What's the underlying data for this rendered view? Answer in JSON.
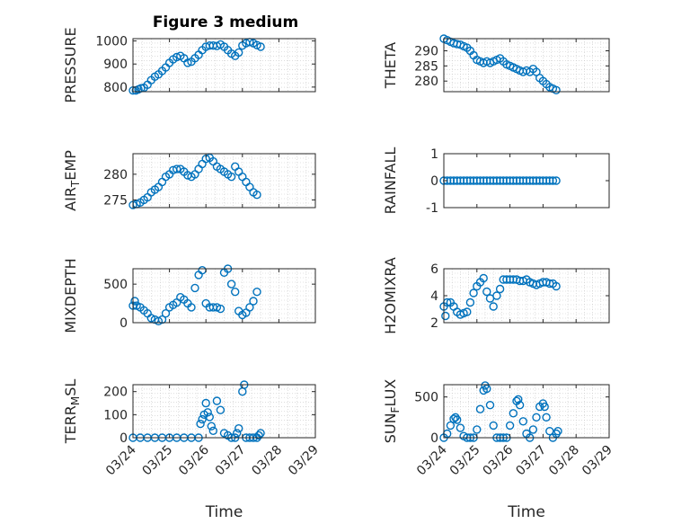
{
  "figure": {
    "title": "Figure 3 medium",
    "marker_color": "#0072bd",
    "axis_color": "#262626",
    "grid_color": "#c8c8c8"
  },
  "chart_data": [
    {
      "type": "scatter",
      "ylabel": "PRESSURE",
      "ylim": [
        780,
        1010
      ],
      "yticks": [
        800,
        900,
        1000
      ],
      "xlim": [
        0,
        5
      ],
      "xticks": [
        0,
        1,
        2,
        3,
        4,
        5
      ],
      "xticklabels": [],
      "grid": true,
      "points": [
        [
          0,
          785
        ],
        [
          0.08,
          785
        ],
        [
          0.15,
          790
        ],
        [
          0.22,
          795
        ],
        [
          0.3,
          797
        ],
        [
          0.4,
          810
        ],
        [
          0.5,
          830
        ],
        [
          0.6,
          845
        ],
        [
          0.7,
          855
        ],
        [
          0.8,
          870
        ],
        [
          0.9,
          885
        ],
        [
          1.0,
          905
        ],
        [
          1.1,
          920
        ],
        [
          1.2,
          930
        ],
        [
          1.3,
          935
        ],
        [
          1.4,
          925
        ],
        [
          1.5,
          905
        ],
        [
          1.6,
          910
        ],
        [
          1.7,
          925
        ],
        [
          1.8,
          940
        ],
        [
          1.9,
          960
        ],
        [
          2.0,
          975
        ],
        [
          2.1,
          980
        ],
        [
          2.2,
          980
        ],
        [
          2.3,
          978
        ],
        [
          2.4,
          985
        ],
        [
          2.5,
          975
        ],
        [
          2.6,
          960
        ],
        [
          2.7,
          945
        ],
        [
          2.8,
          935
        ],
        [
          2.9,
          950
        ],
        [
          3.0,
          980
        ],
        [
          3.1,
          990
        ],
        [
          3.2,
          995
        ],
        [
          3.3,
          990
        ],
        [
          3.4,
          982
        ],
        [
          3.5,
          975
        ]
      ]
    },
    {
      "type": "scatter",
      "ylabel": "THETA",
      "ylim": [
        276.5,
        294
      ],
      "yticks": [
        280,
        285,
        290
      ],
      "xlim": [
        0,
        5
      ],
      "xticks": [
        0,
        1,
        2,
        3,
        4,
        5
      ],
      "xticklabels": [],
      "grid": true,
      "points": [
        [
          0,
          294
        ],
        [
          0.1,
          293.5
        ],
        [
          0.2,
          293
        ],
        [
          0.3,
          292.5
        ],
        [
          0.4,
          292.2
        ],
        [
          0.5,
          292
        ],
        [
          0.6,
          291.5
        ],
        [
          0.7,
          291
        ],
        [
          0.8,
          290
        ],
        [
          0.9,
          288.5
        ],
        [
          1.0,
          287
        ],
        [
          1.1,
          286.5
        ],
        [
          1.2,
          286
        ],
        [
          1.3,
          286.5
        ],
        [
          1.4,
          286
        ],
        [
          1.5,
          286.5
        ],
        [
          1.6,
          287
        ],
        [
          1.7,
          287.5
        ],
        [
          1.8,
          286.5
        ],
        [
          1.9,
          285.5
        ],
        [
          2.0,
          285
        ],
        [
          2.1,
          284.5
        ],
        [
          2.2,
          284
        ],
        [
          2.3,
          283.5
        ],
        [
          2.4,
          283
        ],
        [
          2.5,
          283.5
        ],
        [
          2.6,
          283
        ],
        [
          2.7,
          284
        ],
        [
          2.8,
          283
        ],
        [
          2.9,
          281
        ],
        [
          3.0,
          280
        ],
        [
          3.1,
          279
        ],
        [
          3.2,
          278
        ],
        [
          3.3,
          277.5
        ],
        [
          3.4,
          277
        ]
      ]
    },
    {
      "type": "scatter",
      "ylabel": "AIR_TEMP",
      "ylabel_main": "AIR",
      "ylabel_sub": "T",
      "ylabel_rest": "EMP",
      "ylim": [
        273.5,
        284
      ],
      "yticks": [
        275,
        280
      ],
      "xlim": [
        0,
        5
      ],
      "xticks": [
        0,
        1,
        2,
        3,
        4,
        5
      ],
      "xticklabels": [],
      "grid": true,
      "points": [
        [
          0,
          274
        ],
        [
          0.1,
          274.2
        ],
        [
          0.2,
          274.5
        ],
        [
          0.3,
          275
        ],
        [
          0.4,
          275.5
        ],
        [
          0.5,
          276.5
        ],
        [
          0.6,
          277
        ],
        [
          0.7,
          277.5
        ],
        [
          0.8,
          278.5
        ],
        [
          0.9,
          279.5
        ],
        [
          1.0,
          280
        ],
        [
          1.1,
          280.8
        ],
        [
          1.2,
          281
        ],
        [
          1.3,
          281
        ],
        [
          1.4,
          280.5
        ],
        [
          1.5,
          279.8
        ],
        [
          1.6,
          279.5
        ],
        [
          1.7,
          280
        ],
        [
          1.8,
          281
        ],
        [
          1.9,
          282
        ],
        [
          2.0,
          283
        ],
        [
          2.1,
          283.2
        ],
        [
          2.2,
          282.5
        ],
        [
          2.3,
          281.5
        ],
        [
          2.4,
          281
        ],
        [
          2.5,
          280.5
        ],
        [
          2.6,
          280
        ],
        [
          2.7,
          279.5
        ],
        [
          2.8,
          281.5
        ],
        [
          2.9,
          280.5
        ],
        [
          3.0,
          279.5
        ],
        [
          3.1,
          278.5
        ],
        [
          3.2,
          277.5
        ],
        [
          3.3,
          276.5
        ],
        [
          3.4,
          276
        ]
      ]
    },
    {
      "type": "scatter",
      "ylabel": "RAINFALL",
      "ylim": [
        -1,
        1
      ],
      "yticks": [
        -1,
        0,
        1
      ],
      "xlim": [
        0,
        5
      ],
      "xticks": [
        0,
        1,
        2,
        3,
        4,
        5
      ],
      "xticklabels": [],
      "grid": false,
      "points": [
        [
          0,
          0
        ],
        [
          0.1,
          0
        ],
        [
          0.2,
          0
        ],
        [
          0.3,
          0
        ],
        [
          0.4,
          0
        ],
        [
          0.5,
          0
        ],
        [
          0.6,
          0
        ],
        [
          0.7,
          0
        ],
        [
          0.8,
          0
        ],
        [
          0.9,
          0
        ],
        [
          1.0,
          0
        ],
        [
          1.1,
          0
        ],
        [
          1.2,
          0
        ],
        [
          1.3,
          0
        ],
        [
          1.4,
          0
        ],
        [
          1.5,
          0
        ],
        [
          1.6,
          0
        ],
        [
          1.7,
          0
        ],
        [
          1.8,
          0
        ],
        [
          1.9,
          0
        ],
        [
          2.0,
          0
        ],
        [
          2.1,
          0
        ],
        [
          2.2,
          0
        ],
        [
          2.3,
          0
        ],
        [
          2.4,
          0
        ],
        [
          2.5,
          0
        ],
        [
          2.6,
          0
        ],
        [
          2.7,
          0
        ],
        [
          2.8,
          0
        ],
        [
          2.9,
          0
        ],
        [
          3.0,
          0
        ],
        [
          3.1,
          0
        ],
        [
          3.2,
          0
        ],
        [
          3.3,
          0
        ],
        [
          3.4,
          0
        ]
      ]
    },
    {
      "type": "scatter",
      "ylabel": "MIXDEPTH",
      "ylim": [
        0,
        700
      ],
      "yticks": [
        0,
        500
      ],
      "xlim": [
        0,
        5
      ],
      "xticks": [
        0,
        1,
        2,
        3,
        4,
        5
      ],
      "xticklabels": [],
      "grid": true,
      "points": [
        [
          0,
          220
        ],
        [
          0.05,
          280
        ],
        [
          0.1,
          220
        ],
        [
          0.2,
          200
        ],
        [
          0.3,
          160
        ],
        [
          0.4,
          120
        ],
        [
          0.5,
          60
        ],
        [
          0.6,
          40
        ],
        [
          0.7,
          20
        ],
        [
          0.8,
          40
        ],
        [
          0.9,
          120
        ],
        [
          1.0,
          200
        ],
        [
          1.1,
          230
        ],
        [
          1.2,
          260
        ],
        [
          1.3,
          330
        ],
        [
          1.4,
          300
        ],
        [
          1.5,
          250
        ],
        [
          1.6,
          200
        ],
        [
          1.7,
          450
        ],
        [
          1.8,
          620
        ],
        [
          1.9,
          680
        ],
        [
          2.0,
          250
        ],
        [
          2.1,
          200
        ],
        [
          2.2,
          200
        ],
        [
          2.3,
          200
        ],
        [
          2.4,
          180
        ],
        [
          2.5,
          650
        ],
        [
          2.6,
          700
        ],
        [
          2.7,
          500
        ],
        [
          2.8,
          400
        ],
        [
          2.9,
          150
        ],
        [
          3.0,
          100
        ],
        [
          3.1,
          130
        ],
        [
          3.2,
          200
        ],
        [
          3.3,
          280
        ],
        [
          3.4,
          400
        ]
      ]
    },
    {
      "type": "scatter",
      "ylabel": "H2OMIXRA",
      "ylim": [
        2,
        6
      ],
      "yticks": [
        2,
        4,
        6
      ],
      "xlim": [
        0,
        5
      ],
      "xticks": [
        0,
        1,
        2,
        3,
        4,
        5
      ],
      "xticklabels": [],
      "grid": true,
      "points": [
        [
          0,
          3.2
        ],
        [
          0.05,
          2.5
        ],
        [
          0.1,
          3.5
        ],
        [
          0.2,
          3.5
        ],
        [
          0.3,
          3.2
        ],
        [
          0.4,
          2.8
        ],
        [
          0.5,
          2.6
        ],
        [
          0.6,
          2.7
        ],
        [
          0.7,
          2.8
        ],
        [
          0.8,
          3.5
        ],
        [
          0.9,
          4.2
        ],
        [
          1.0,
          4.7
        ],
        [
          1.1,
          5.0
        ],
        [
          1.2,
          5.3
        ],
        [
          1.3,
          4.3
        ],
        [
          1.4,
          3.8
        ],
        [
          1.5,
          3.2
        ],
        [
          1.6,
          4.0
        ],
        [
          1.7,
          4.5
        ],
        [
          1.8,
          5.2
        ],
        [
          1.9,
          5.2
        ],
        [
          2.0,
          5.2
        ],
        [
          2.1,
          5.2
        ],
        [
          2.2,
          5.2
        ],
        [
          2.3,
          5.1
        ],
        [
          2.4,
          5.1
        ],
        [
          2.5,
          5.2
        ],
        [
          2.6,
          5.0
        ],
        [
          2.7,
          4.9
        ],
        [
          2.8,
          4.8
        ],
        [
          2.9,
          4.9
        ],
        [
          3.0,
          5.0
        ],
        [
          3.1,
          5.0
        ],
        [
          3.2,
          4.9
        ],
        [
          3.3,
          4.9
        ],
        [
          3.4,
          4.7
        ]
      ]
    },
    {
      "type": "scatter",
      "ylabel": "TERR_MSL",
      "ylabel_main": "TERR",
      "ylabel_sub": "M",
      "ylabel_rest": "SL",
      "ylim": [
        0,
        230
      ],
      "yticks": [
        0,
        100,
        200
      ],
      "xlim": [
        0,
        5
      ],
      "xticks": [
        0,
        1,
        2,
        3,
        4,
        5
      ],
      "xticklabels": [
        "03/24",
        "03/25",
        "03/26",
        "03/27",
        "03/28",
        "03/29"
      ],
      "xlabel": "Time",
      "grid": true,
      "points": [
        [
          0,
          0
        ],
        [
          0.2,
          0
        ],
        [
          0.4,
          0
        ],
        [
          0.6,
          0
        ],
        [
          0.8,
          0
        ],
        [
          1.0,
          0
        ],
        [
          1.2,
          0
        ],
        [
          1.4,
          0
        ],
        [
          1.6,
          0
        ],
        [
          1.8,
          0
        ],
        [
          1.85,
          60
        ],
        [
          1.9,
          80
        ],
        [
          1.95,
          100
        ],
        [
          2.0,
          150
        ],
        [
          2.05,
          110
        ],
        [
          2.1,
          90
        ],
        [
          2.15,
          50
        ],
        [
          2.2,
          30
        ],
        [
          2.3,
          160
        ],
        [
          2.4,
          120
        ],
        [
          2.5,
          20
        ],
        [
          2.6,
          10
        ],
        [
          2.7,
          0
        ],
        [
          2.8,
          0
        ],
        [
          2.85,
          20
        ],
        [
          2.9,
          40
        ],
        [
          3.0,
          200
        ],
        [
          3.05,
          230
        ],
        [
          3.1,
          0
        ],
        [
          3.2,
          0
        ],
        [
          3.3,
          0
        ],
        [
          3.4,
          0
        ],
        [
          3.45,
          10
        ],
        [
          3.5,
          20
        ]
      ]
    },
    {
      "type": "scatter",
      "ylabel": "SUN_FLUX",
      "ylabel_main": "SUN",
      "ylabel_sub": "F",
      "ylabel_rest": "LUX",
      "ylim": [
        0,
        650
      ],
      "yticks": [
        0,
        500
      ],
      "xlim": [
        0,
        5
      ],
      "xticks": [
        0,
        1,
        2,
        3,
        4,
        5
      ],
      "xticklabels": [
        "03/24",
        "03/25",
        "03/26",
        "03/27",
        "03/28",
        "03/29"
      ],
      "xlabel": "Time",
      "grid": true,
      "points": [
        [
          0,
          0
        ],
        [
          0.1,
          50
        ],
        [
          0.2,
          150
        ],
        [
          0.3,
          230
        ],
        [
          0.35,
          250
        ],
        [
          0.4,
          220
        ],
        [
          0.5,
          120
        ],
        [
          0.6,
          20
        ],
        [
          0.7,
          0
        ],
        [
          0.8,
          0
        ],
        [
          0.9,
          0
        ],
        [
          1.0,
          100
        ],
        [
          1.1,
          350
        ],
        [
          1.2,
          580
        ],
        [
          1.25,
          640
        ],
        [
          1.3,
          600
        ],
        [
          1.4,
          400
        ],
        [
          1.5,
          150
        ],
        [
          1.6,
          0
        ],
        [
          1.7,
          0
        ],
        [
          1.8,
          0
        ],
        [
          1.9,
          0
        ],
        [
          2.0,
          150
        ],
        [
          2.1,
          300
        ],
        [
          2.2,
          450
        ],
        [
          2.25,
          470
        ],
        [
          2.3,
          400
        ],
        [
          2.4,
          200
        ],
        [
          2.5,
          50
        ],
        [
          2.6,
          0
        ],
        [
          2.7,
          100
        ],
        [
          2.8,
          250
        ],
        [
          2.9,
          380
        ],
        [
          3.0,
          420
        ],
        [
          3.05,
          380
        ],
        [
          3.1,
          250
        ],
        [
          3.2,
          80
        ],
        [
          3.3,
          0
        ],
        [
          3.4,
          50
        ],
        [
          3.45,
          80
        ]
      ]
    }
  ]
}
